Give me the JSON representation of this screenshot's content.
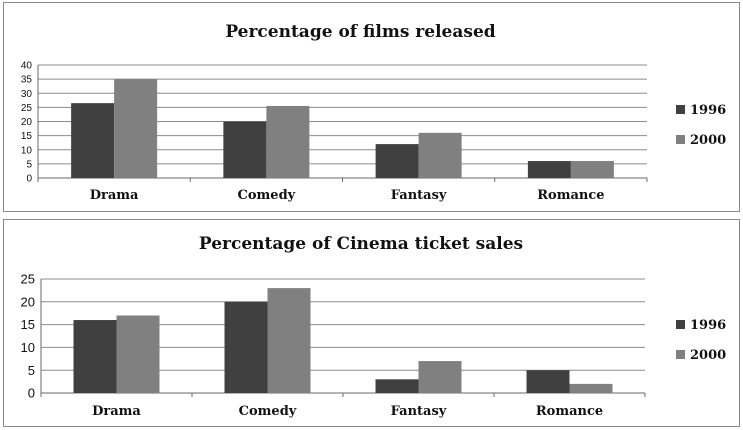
{
  "chart_data": [
    {
      "type": "bar",
      "title": "Percentage of films released",
      "categories": [
        "Drama",
        "Comedy",
        "Fantasy",
        "Romance"
      ],
      "series": [
        {
          "name": "1996",
          "values": [
            26.5,
            20,
            12,
            6
          ],
          "color": "#404040"
        },
        {
          "name": "2000",
          "values": [
            35,
            25.5,
            16,
            6
          ],
          "color": "#808080"
        }
      ],
      "ylim": [
        0,
        40
      ],
      "yticks": [
        0,
        5,
        10,
        15,
        20,
        25,
        30,
        35,
        40
      ],
      "grid": true,
      "legend": "right"
    },
    {
      "type": "bar",
      "title": "Percentage of Cinema ticket sales",
      "categories": [
        "Drama",
        "Comedy",
        "Fantasy",
        "Romance"
      ],
      "series": [
        {
          "name": "1996",
          "values": [
            16,
            20,
            3,
            5
          ],
          "color": "#404040"
        },
        {
          "name": "2000",
          "values": [
            17,
            23,
            7,
            2
          ],
          "color": "#808080"
        }
      ],
      "ylim": [
        0,
        25
      ],
      "yticks": [
        0,
        5,
        10,
        15,
        20,
        25
      ],
      "grid": true,
      "legend": "right"
    }
  ]
}
